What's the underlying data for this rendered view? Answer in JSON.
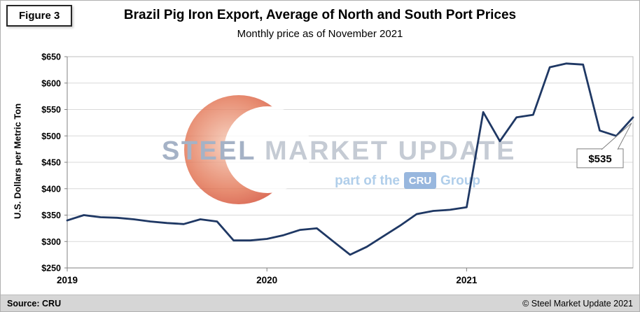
{
  "figure_label": "Figure 3",
  "title": "Brazil Pig Iron Export, Average of North and South Port Prices",
  "subtitle": "Monthly price as of November 2021",
  "watermark": {
    "steel": "STEEL",
    "market_update": "MARKET UPDATE",
    "part_of": "part of the",
    "cru": "CRU",
    "group": "Group"
  },
  "footer": {
    "source": "Source: CRU",
    "copyright": "© Steel Market Update 2021"
  },
  "colors": {
    "line": "#1F3864",
    "gridline": "#d9d9d9",
    "axis": "#808080",
    "watermark_red": "#c11d0e",
    "cru_badge": "#7fa6d6",
    "footer_bg": "#d6d6d6"
  },
  "chart_data": {
    "type": "line",
    "title": "Brazil Pig Iron Export, Average of North and South Port Prices",
    "subtitle": "Monthly price as of November 2021",
    "ylabel": "U.S. Dollars per Metric Ton",
    "ylim": [
      250,
      650
    ],
    "y_tick_step": 50,
    "y_tick_prefix": "$",
    "grid": true,
    "legend": false,
    "x_tick_labels": [
      "2019",
      "2020",
      "2021"
    ],
    "x_tick_indices": [
      0,
      12,
      24
    ],
    "x": [
      "2019-01",
      "2019-02",
      "2019-03",
      "2019-04",
      "2019-05",
      "2019-06",
      "2019-07",
      "2019-08",
      "2019-09",
      "2019-10",
      "2019-11",
      "2019-12",
      "2020-01",
      "2020-02",
      "2020-03",
      "2020-04",
      "2020-05",
      "2020-06",
      "2020-07",
      "2020-08",
      "2020-09",
      "2020-10",
      "2020-11",
      "2020-12",
      "2021-01",
      "2021-02",
      "2021-03",
      "2021-04",
      "2021-05",
      "2021-06",
      "2021-07",
      "2021-08",
      "2021-09",
      "2021-10",
      "2021-11"
    ],
    "values": [
      340,
      350,
      346,
      345,
      342,
      338,
      335,
      333,
      342,
      338,
      302,
      302,
      305,
      312,
      322,
      325,
      300,
      275,
      290,
      310,
      330,
      352,
      358,
      360,
      365,
      545,
      490,
      535,
      540,
      630,
      637,
      635,
      510,
      500,
      535
    ],
    "line_color": "#1F3864",
    "annotation": {
      "text": "$535",
      "index": 34
    }
  }
}
